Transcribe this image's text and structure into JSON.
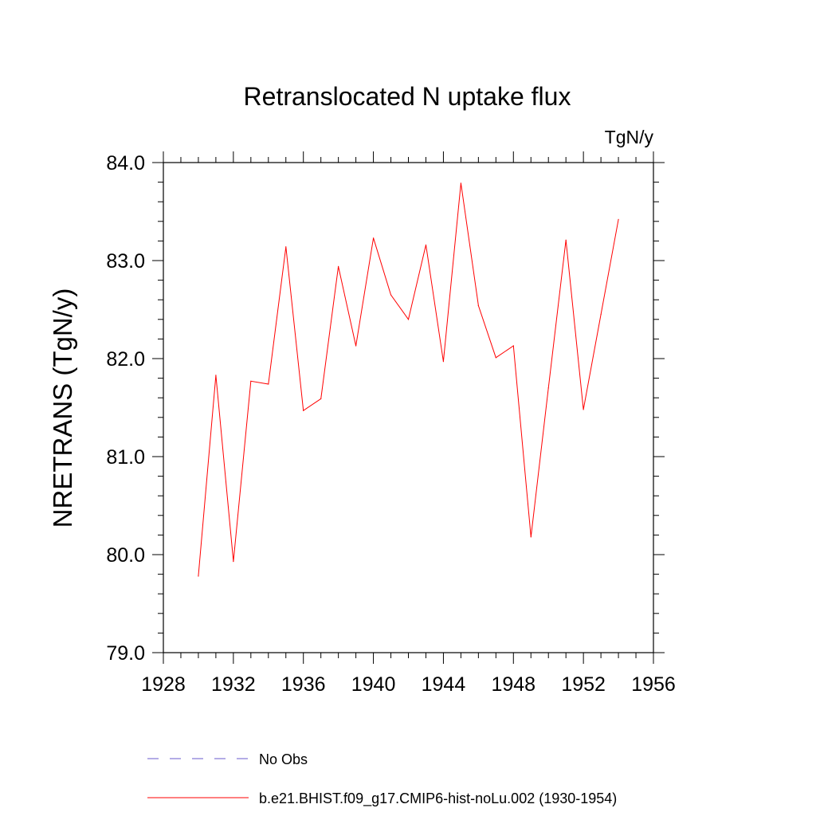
{
  "chart_data": {
    "type": "line",
    "title": "Retranslocated N uptake flux",
    "units": "TgN/y",
    "xlabel": "",
    "ylabel": "NRETRANS  (TgN/y)",
    "xlim": [
      1928,
      1956
    ],
    "ylim": [
      79.0,
      84.0
    ],
    "x_ticks": [
      1928,
      1932,
      1936,
      1940,
      1944,
      1948,
      1952,
      1956
    ],
    "x_tick_labels": [
      "1928",
      "1932",
      "1936",
      "1940",
      "1944",
      "1948",
      "1952",
      "1956"
    ],
    "y_ticks": [
      79.0,
      80.0,
      81.0,
      82.0,
      83.0,
      84.0
    ],
    "y_tick_labels": [
      "79.0",
      "80.0",
      "81.0",
      "82.0",
      "83.0",
      "84.0"
    ],
    "grid": false,
    "legend_position": "bottom",
    "series": [
      {
        "name": "b.e21.BHIST.f09_g17.CMIP6-hist-noLu.002 (1930-1954)",
        "color": "#ff0000",
        "style": "solid",
        "x": [
          1930,
          1931,
          1932,
          1933,
          1934,
          1935,
          1936,
          1937,
          1938,
          1939,
          1940,
          1941,
          1942,
          1943,
          1944,
          1945,
          1946,
          1947,
          1948,
          1949,
          1950,
          1951,
          1952,
          1953,
          1954
        ],
        "y": [
          79.78,
          81.83,
          79.93,
          81.77,
          81.74,
          83.14,
          81.47,
          81.59,
          82.94,
          82.13,
          83.23,
          82.65,
          82.4,
          83.16,
          81.97,
          83.79,
          82.54,
          82.01,
          82.13,
          80.18,
          81.7,
          83.21,
          81.48,
          82.45,
          83.42
        ]
      }
    ],
    "legend": [
      {
        "label": "No Obs",
        "color": "#6a5acd",
        "style": "dashed"
      },
      {
        "label": "b.e21.BHIST.f09_g17.CMIP6-hist-noLu.002 (1930-1954)",
        "color": "#ff0000",
        "style": "solid"
      }
    ]
  }
}
